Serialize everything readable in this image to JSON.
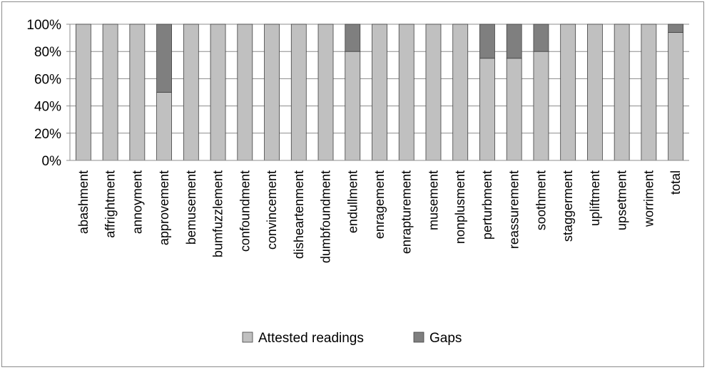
{
  "chart_data": {
    "type": "bar",
    "stacked": true,
    "percent": true,
    "categories": [
      "abashment",
      "affrightment",
      "annoyment",
      "approvement",
      "bemusement",
      "bumfuzzlement",
      "confoundment",
      "convincement",
      "disheartenment",
      "dumbfoundment",
      "endullment",
      "enragement",
      "enrapturement",
      "musement",
      "nonplusment",
      "perturbment",
      "reassurement",
      "soothment",
      "staggerment",
      "upliftment",
      "upsetment",
      "worriment",
      "total"
    ],
    "series": [
      {
        "name": "Attested readings",
        "color": "#c0c0c0",
        "values": [
          100,
          100,
          100,
          50,
          100,
          100,
          100,
          100,
          100,
          100,
          80,
          100,
          100,
          100,
          100,
          75,
          75,
          80,
          100,
          100,
          100,
          100,
          94
        ]
      },
      {
        "name": "Gaps",
        "color": "#7f7f7f",
        "values": [
          0,
          0,
          0,
          50,
          0,
          0,
          0,
          0,
          0,
          0,
          20,
          0,
          0,
          0,
          0,
          25,
          25,
          20,
          0,
          0,
          0,
          0,
          6
        ]
      }
    ],
    "yticks": [
      "0%",
      "20%",
      "40%",
      "60%",
      "80%",
      "100%"
    ],
    "ylim": [
      0,
      100
    ],
    "grid": true,
    "legend_position": "bottom",
    "title": "",
    "xlabel": "",
    "ylabel": ""
  }
}
